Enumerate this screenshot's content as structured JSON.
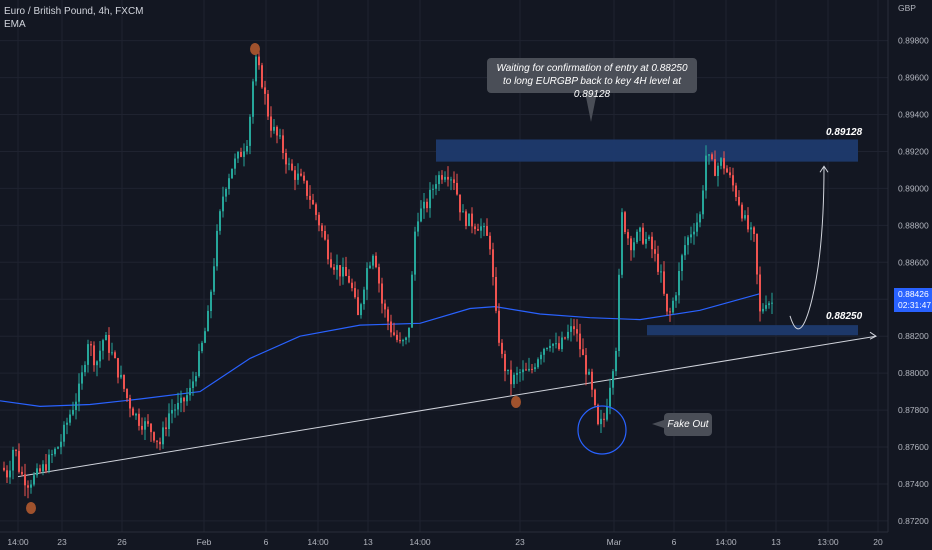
{
  "legend": {
    "symbol_line": "Euro / British Pound, 4h, FXCM",
    "indicator": "EMA"
  },
  "price_axis": {
    "currency": "GBP",
    "ticks": [
      "0.89800",
      "0.89600",
      "0.89400",
      "0.89200",
      "0.89000",
      "0.88800",
      "0.88600",
      "0.88400",
      "0.88200",
      "0.88000",
      "0.87800",
      "0.87600",
      "0.87400",
      "0.87200"
    ],
    "current_price": "0.88426",
    "countdown": "02:31:47"
  },
  "time_axis": {
    "ticks": [
      "14:00",
      "23",
      "26",
      "Feb",
      "6",
      "14:00",
      "13",
      "14:00",
      "23",
      "Mar",
      "6",
      "14:00",
      "13",
      "13:00",
      "20"
    ]
  },
  "annotations": {
    "callout_top_line1": "Waiting for confirmation of entry at 0.88250",
    "callout_top_line2": "to long EURGBP back to key 4H level at 0.89128",
    "callout_fakeout": "Fake Out",
    "upper_level_label": "0.89128",
    "lower_level_label": "0.88250"
  },
  "colors": {
    "background": "#131722",
    "up_candle": "#26a69a",
    "down_candle": "#ef5350",
    "ema_line": "#2962ff",
    "zone_fill": "#1e3a6e",
    "marker": "#a0522d",
    "price_tag": "#2962ff"
  },
  "chart_data": {
    "type": "candlestick",
    "symbol": "EURGBP",
    "timeframe": "4h",
    "ylim": [
      0.8714,
      0.9002
    ],
    "key_levels": [
      0.89128,
      0.8825
    ],
    "zones": [
      {
        "low": 0.89145,
        "high": 0.89265
      },
      {
        "low": 0.88205,
        "high": 0.8826
      }
    ],
    "ema_path": [
      [
        0,
        0.8785
      ],
      [
        40,
        0.8782
      ],
      [
        90,
        0.8783
      ],
      [
        140,
        0.8786
      ],
      [
        200,
        0.879
      ],
      [
        250,
        0.8808
      ],
      [
        300,
        0.882
      ],
      [
        360,
        0.8826
      ],
      [
        420,
        0.8827
      ],
      [
        470,
        0.8835
      ],
      [
        495,
        0.8836
      ],
      [
        540,
        0.8832
      ],
      [
        590,
        0.883
      ],
      [
        640,
        0.8829
      ],
      [
        700,
        0.8834
      ],
      [
        760,
        0.8843
      ]
    ],
    "swing_path": [
      [
        0,
        0.875
      ],
      [
        8,
        0.8745
      ],
      [
        14,
        0.8762
      ],
      [
        20,
        0.8746
      ],
      [
        28,
        0.8741
      ],
      [
        38,
        0.8745
      ],
      [
        48,
        0.8752
      ],
      [
        60,
        0.8762
      ],
      [
        70,
        0.8778
      ],
      [
        80,
        0.8792
      ],
      [
        88,
        0.8818
      ],
      [
        96,
        0.8805
      ],
      [
        104,
        0.882
      ],
      [
        112,
        0.881
      ],
      [
        120,
        0.8798
      ],
      [
        128,
        0.8785
      ],
      [
        138,
        0.8775
      ],
      [
        150,
        0.877
      ],
      [
        160,
        0.8762
      ],
      [
        170,
        0.878
      ],
      [
        180,
        0.8782
      ],
      [
        190,
        0.879
      ],
      [
        200,
        0.881
      ],
      [
        208,
        0.883
      ],
      [
        216,
        0.887
      ],
      [
        224,
        0.89
      ],
      [
        232,
        0.8912
      ],
      [
        240,
        0.8918
      ],
      [
        248,
        0.8928
      ],
      [
        255,
        0.897
      ],
      [
        262,
        0.8958
      ],
      [
        270,
        0.8935
      ],
      [
        280,
        0.8925
      ],
      [
        290,
        0.891
      ],
      [
        300,
        0.8905
      ],
      [
        310,
        0.8895
      ],
      [
        320,
        0.888
      ],
      [
        330,
        0.8862
      ],
      [
        340,
        0.8855
      ],
      [
        350,
        0.885
      ],
      [
        358,
        0.883
      ],
      [
        366,
        0.8855
      ],
      [
        374,
        0.8868
      ],
      [
        382,
        0.8838
      ],
      [
        390,
        0.8825
      ],
      [
        400,
        0.8815
      ],
      [
        408,
        0.8818
      ],
      [
        416,
        0.8885
      ],
      [
        426,
        0.889
      ],
      [
        436,
        0.8905
      ],
      [
        446,
        0.891
      ],
      [
        454,
        0.8905
      ],
      [
        462,
        0.8885
      ],
      [
        470,
        0.8882
      ],
      [
        480,
        0.888
      ],
      [
        490,
        0.887
      ],
      [
        496,
        0.883
      ],
      [
        502,
        0.8808
      ],
      [
        510,
        0.8795
      ],
      [
        520,
        0.88
      ],
      [
        530,
        0.88
      ],
      [
        540,
        0.8812
      ],
      [
        550,
        0.8818
      ],
      [
        558,
        0.8812
      ],
      [
        566,
        0.882
      ],
      [
        574,
        0.8825
      ],
      [
        582,
        0.881
      ],
      [
        590,
        0.8795
      ],
      [
        598,
        0.877
      ],
      [
        604,
        0.8775
      ],
      [
        610,
        0.8795
      ],
      [
        616,
        0.8815
      ],
      [
        622,
        0.8885
      ],
      [
        630,
        0.887
      ],
      [
        640,
        0.8875
      ],
      [
        650,
        0.887
      ],
      [
        660,
        0.8855
      ],
      [
        668,
        0.8828
      ],
      [
        676,
        0.8845
      ],
      [
        684,
        0.8868
      ],
      [
        692,
        0.8878
      ],
      [
        700,
        0.8885
      ],
      [
        706,
        0.8918
      ],
      [
        714,
        0.891
      ],
      [
        722,
        0.8915
      ],
      [
        730,
        0.8905
      ],
      [
        738,
        0.8895
      ],
      [
        746,
        0.888
      ],
      [
        754,
        0.8872
      ],
      [
        760,
        0.8832
      ],
      [
        766,
        0.884
      ],
      [
        772,
        0.8838
      ]
    ],
    "trendline": [
      [
        18,
        0.8744
      ],
      [
        860,
        0.882
      ]
    ],
    "projection": [
      [
        790,
        0.8831
      ],
      [
        800,
        0.8822
      ],
      [
        812,
        0.884
      ],
      [
        824,
        0.8912
      ]
    ]
  }
}
